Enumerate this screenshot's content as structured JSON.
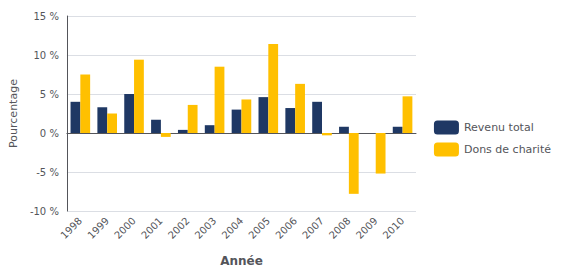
{
  "chart_data": {
    "type": "bar",
    "xlabel": "Année",
    "ylabel": "Pourcentage",
    "categories": [
      "1998",
      "1999",
      "2000",
      "2001",
      "2002",
      "2003",
      "2004",
      "2005",
      "2006",
      "2007",
      "2008",
      "2009",
      "2010"
    ],
    "series": [
      {
        "name": "Revenu total",
        "color": "#1F3864",
        "values": [
          4.0,
          3.3,
          5.0,
          1.7,
          0.4,
          1.0,
          3.0,
          4.6,
          3.2,
          4.0,
          0.8,
          0.0,
          0.8
        ]
      },
      {
        "name": "Dons de charité",
        "color": "#FFC000",
        "values": [
          7.5,
          2.5,
          9.4,
          -0.5,
          3.6,
          8.5,
          4.3,
          11.4,
          6.3,
          -0.3,
          -7.8,
          -5.2,
          4.7
        ]
      }
    ],
    "ylim": [
      -10,
      15
    ],
    "yticks": [
      {
        "value": -10,
        "label": "-10 %"
      },
      {
        "value": -5,
        "label": "-5 %"
      },
      {
        "value": 0,
        "label": "0 %"
      },
      {
        "value": 5,
        "label": "5 %"
      },
      {
        "value": 10,
        "label": "10 %"
      },
      {
        "value": 15,
        "label": "15 %"
      }
    ],
    "grid": true,
    "legend": "right"
  }
}
